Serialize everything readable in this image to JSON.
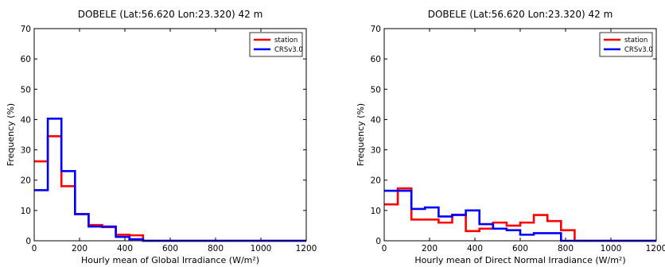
{
  "chart_data": [
    {
      "type": "histogram-step",
      "title": "DOBELE (Lat:56.620 Lon:23.320) 42 m",
      "xlabel": "Hourly mean of Global Irradiance (W/m²)",
      "ylabel": "Frequency (%)",
      "xlim": [
        0,
        1200
      ],
      "ylim": [
        0,
        70
      ],
      "xticks": [
        "0",
        "200",
        "400",
        "600",
        "800",
        "1000",
        "1200"
      ],
      "yticks": [
        "0",
        "10",
        "20",
        "30",
        "40",
        "50",
        "60",
        "70"
      ],
      "grid": false,
      "legend_position": "top-right",
      "bin_edges": [
        0,
        60,
        120,
        180,
        240,
        300,
        360,
        420,
        480,
        540,
        600,
        660,
        720,
        780,
        840,
        900,
        960,
        1020,
        1080,
        1140,
        1200
      ],
      "series": [
        {
          "name": "station",
          "color": "#ff0000",
          "values": [
            26.2,
            34.5,
            18.0,
            8.8,
            5.2,
            4.5,
            2.0,
            1.8,
            0,
            0,
            0,
            0,
            0,
            0,
            0,
            0,
            0,
            0,
            0,
            0
          ]
        },
        {
          "name": "CRSv3.0",
          "color": "#0000ff",
          "values": [
            16.7,
            40.3,
            23.0,
            8.8,
            4.7,
            4.7,
            1.3,
            0.5,
            0,
            0,
            0,
            0,
            0,
            0,
            0,
            0,
            0,
            0,
            0,
            0
          ]
        }
      ]
    },
    {
      "type": "histogram-step",
      "title": "DOBELE (Lat:56.620 Lon:23.320) 42 m",
      "xlabel": "Hourly mean of Direct Normal Irradiance (W/m²)",
      "ylabel": "Frequency (%)",
      "xlim": [
        0,
        1200
      ],
      "ylim": [
        0,
        70
      ],
      "xticks": [
        "0",
        "200",
        "400",
        "600",
        "800",
        "1000",
        "1200"
      ],
      "yticks": [
        "0",
        "10",
        "20",
        "30",
        "40",
        "50",
        "60",
        "70"
      ],
      "grid": false,
      "legend_position": "top-right",
      "bin_edges": [
        0,
        60,
        120,
        180,
        240,
        300,
        360,
        420,
        480,
        540,
        600,
        660,
        720,
        780,
        840,
        900,
        960,
        1020,
        1080,
        1140,
        1200
      ],
      "series": [
        {
          "name": "station",
          "color": "#ff0000",
          "values": [
            12.0,
            17.3,
            7.0,
            7.0,
            6.0,
            8.6,
            3.2,
            4.0,
            6.0,
            5.0,
            6.0,
            8.5,
            6.5,
            3.5,
            0,
            0,
            0,
            0,
            0,
            0
          ]
        },
        {
          "name": "CRSv3.0",
          "color": "#0000ff",
          "values": [
            16.5,
            16.5,
            10.5,
            11.0,
            8.0,
            8.5,
            10.0,
            5.5,
            4.0,
            3.5,
            2.0,
            2.5,
            2.5,
            0,
            0,
            0,
            0,
            0,
            0,
            0
          ]
        }
      ]
    }
  ]
}
